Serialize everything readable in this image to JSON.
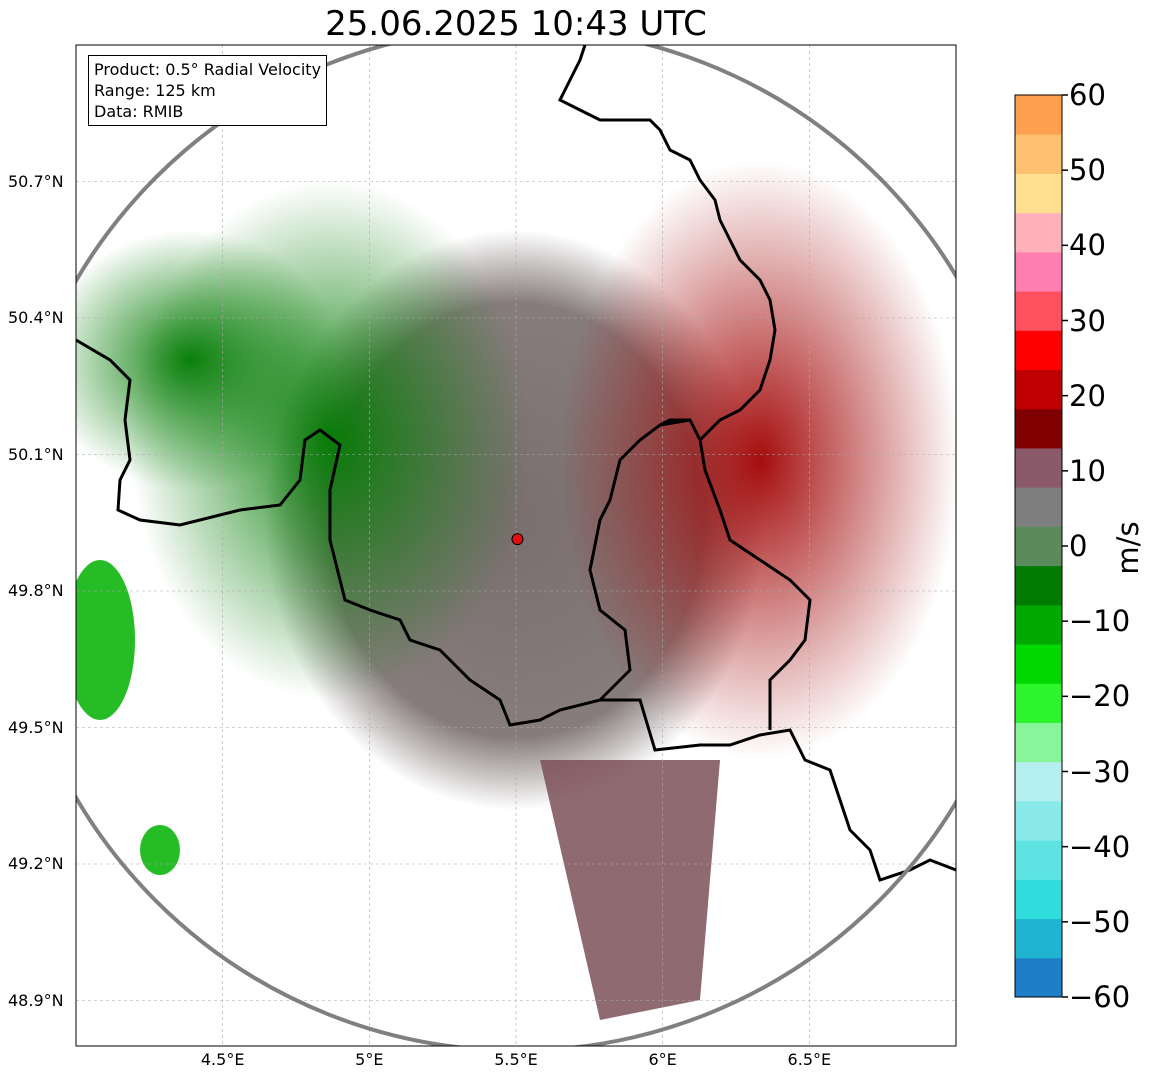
{
  "title": "25.06.2025 10:43 UTC",
  "info": {
    "product": "Product: 0.5° Radial Velocity",
    "range": "Range: 125 km",
    "data": "Data: RMIB"
  },
  "map": {
    "lon_range": [
      4.0,
      7.0
    ],
    "lat_range": [
      48.8,
      51.0
    ],
    "lat_ticks": [
      "50.7°N",
      "50.4°N",
      "50.1°N",
      "49.8°N",
      "49.5°N",
      "49.2°N",
      "48.9°N"
    ],
    "lon_ticks": [
      "4.5°E",
      "5°E",
      "5.5°E",
      "6°E",
      "6.5°E"
    ],
    "radar_site": {
      "lon": 5.505,
      "lat": 49.914
    },
    "range_km": 125,
    "colors": {
      "range_ring": "#808080",
      "radar_marker": "#e01010",
      "border": "#000000"
    }
  },
  "colorbar": {
    "label": "m/s",
    "range": [
      -60,
      60
    ],
    "ticks": [
      "60",
      "50",
      "40",
      "30",
      "20",
      "10",
      "0",
      "−10",
      "−20",
      "−30",
      "−40",
      "−50",
      "−60"
    ],
    "colors": [
      "#1e7fc8",
      "#1fb5d2",
      "#30dcdc",
      "#5ee3e3",
      "#8aeaea",
      "#b5efef",
      "#88f59a",
      "#2cf52c",
      "#00d800",
      "#00a800",
      "#007a00",
      "#5b8a5b",
      "#7f7f7f",
      "#8a5a6a",
      "#800000",
      "#c00000",
      "#ff0000",
      "#ff5060",
      "#ff80b0",
      "#ffb0b8",
      "#ffe090",
      "#ffc070",
      "#ffa050"
    ]
  }
}
